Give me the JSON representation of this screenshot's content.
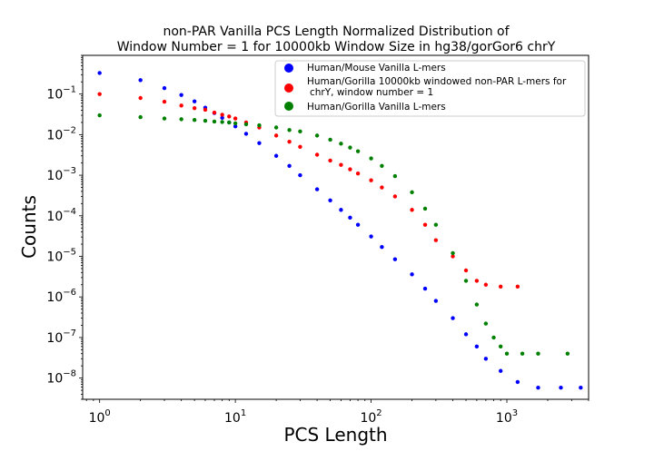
{
  "chart_data": {
    "type": "scatter",
    "title_lines": [
      "non-PAR Vanilla PCS Length Normalized Distribution of",
      "Window Number = 1 for 10000kb Window Size in hg38/gorGor6 chrY"
    ],
    "xlabel": "PCS Length",
    "ylabel": "Counts",
    "x_scale": "log",
    "y_scale": "log",
    "xlim": [
      0.75,
      4000
    ],
    "ylim": [
      3e-09,
      0.9
    ],
    "x_ticks": [
      {
        "value": 1,
        "base": "10",
        "exp": "0"
      },
      {
        "value": 10,
        "base": "10",
        "exp": "1"
      },
      {
        "value": 100,
        "base": "10",
        "exp": "2"
      },
      {
        "value": 1000,
        "base": "10",
        "exp": "3"
      }
    ],
    "y_ticks": [
      {
        "value": 0.1,
        "base": "10",
        "exp": "−1"
      },
      {
        "value": 0.01,
        "base": "10",
        "exp": "−2"
      },
      {
        "value": 0.001,
        "base": "10",
        "exp": "−3"
      },
      {
        "value": 0.0001,
        "base": "10",
        "exp": "−4"
      },
      {
        "value": 1e-05,
        "base": "10",
        "exp": "−5"
      },
      {
        "value": 1e-06,
        "base": "10",
        "exp": "−6"
      },
      {
        "value": 1e-07,
        "base": "10",
        "exp": "−7"
      },
      {
        "value": 1e-08,
        "base": "10",
        "exp": "−8"
      }
    ],
    "grid": false,
    "legend_position": "upper right",
    "series": [
      {
        "name": "Human/Mouse Vanilla L-mers",
        "color": "#0000ff",
        "points": [
          [
            1,
            0.33
          ],
          [
            2,
            0.22
          ],
          [
            3,
            0.14
          ],
          [
            4,
            0.095
          ],
          [
            5,
            0.066
          ],
          [
            6,
            0.046
          ],
          [
            7,
            0.034
          ],
          [
            8,
            0.026
          ],
          [
            9,
            0.02
          ],
          [
            10,
            0.016
          ],
          [
            12,
            0.0105
          ],
          [
            15,
            0.0062
          ],
          [
            20,
            0.003
          ],
          [
            25,
            0.0017
          ],
          [
            30,
            0.001
          ],
          [
            40,
            0.00045
          ],
          [
            50,
            0.00024
          ],
          [
            60,
            0.00014
          ],
          [
            70,
            9e-05
          ],
          [
            80,
            6e-05
          ],
          [
            100,
            3.1e-05
          ],
          [
            120,
            1.7e-05
          ],
          [
            150,
            8.5e-06
          ],
          [
            200,
            3.6e-06
          ],
          [
            250,
            1.6e-06
          ],
          [
            300,
            8e-07
          ],
          [
            400,
            3e-07
          ],
          [
            500,
            1.2e-07
          ],
          [
            600,
            6e-08
          ],
          [
            700,
            3e-08
          ],
          [
            900,
            1.5e-08
          ],
          [
            1200,
            8e-09
          ],
          [
            1700,
            5.8e-09
          ],
          [
            2500,
            5.8e-09
          ],
          [
            3500,
            5.8e-09
          ]
        ]
      },
      {
        "name": "Human/Gorilla 10000kb windowed non-PAR L-mers for chrY, window number = 1",
        "color": "#ff0000",
        "points": [
          [
            1,
            0.1
          ],
          [
            2,
            0.08
          ],
          [
            3,
            0.065
          ],
          [
            4,
            0.052
          ],
          [
            5,
            0.045
          ],
          [
            6,
            0.041
          ],
          [
            7,
            0.035
          ],
          [
            8,
            0.031
          ],
          [
            9,
            0.028
          ],
          [
            10,
            0.025
          ],
          [
            12,
            0.02
          ],
          [
            15,
            0.015
          ],
          [
            20,
            0.0095
          ],
          [
            25,
            0.0067
          ],
          [
            30,
            0.005
          ],
          [
            40,
            0.0032
          ],
          [
            50,
            0.0023
          ],
          [
            60,
            0.0018
          ],
          [
            70,
            0.0014
          ],
          [
            80,
            0.0011
          ],
          [
            100,
            0.00075
          ],
          [
            120,
            0.0005
          ],
          [
            150,
            0.0003
          ],
          [
            200,
            0.00014
          ],
          [
            250,
            6e-05
          ],
          [
            300,
            2.5e-05
          ],
          [
            400,
            1e-05
          ],
          [
            500,
            4.5e-06
          ],
          [
            600,
            2.5e-06
          ],
          [
            700,
            2e-06
          ],
          [
            900,
            1.8e-06
          ],
          [
            1200,
            1.8e-06
          ]
        ]
      },
      {
        "name": "Human/Gorilla Vanilla L-mers",
        "color": "#008000",
        "points": [
          [
            1,
            0.03
          ],
          [
            2,
            0.027
          ],
          [
            3,
            0.025
          ],
          [
            4,
            0.024
          ],
          [
            5,
            0.023
          ],
          [
            6,
            0.022
          ],
          [
            7,
            0.021
          ],
          [
            8,
            0.0205
          ],
          [
            9,
            0.02
          ],
          [
            10,
            0.019
          ],
          [
            12,
            0.018
          ],
          [
            15,
            0.017
          ],
          [
            20,
            0.015
          ],
          [
            25,
            0.013
          ],
          [
            30,
            0.012
          ],
          [
            40,
            0.0095
          ],
          [
            50,
            0.0075
          ],
          [
            60,
            0.006
          ],
          [
            70,
            0.0048
          ],
          [
            80,
            0.0039
          ],
          [
            100,
            0.0026
          ],
          [
            120,
            0.0017
          ],
          [
            150,
            0.00095
          ],
          [
            200,
            0.00038
          ],
          [
            250,
            0.00015
          ],
          [
            300,
            6e-05
          ],
          [
            400,
            1.2e-05
          ],
          [
            500,
            2.5e-06
          ],
          [
            600,
            6.5e-07
          ],
          [
            700,
            2.2e-07
          ],
          [
            800,
            1e-07
          ],
          [
            900,
            6e-08
          ],
          [
            1000,
            4e-08
          ],
          [
            1300,
            4e-08
          ],
          [
            1700,
            4e-08
          ],
          [
            2800,
            4e-08
          ]
        ]
      }
    ]
  }
}
